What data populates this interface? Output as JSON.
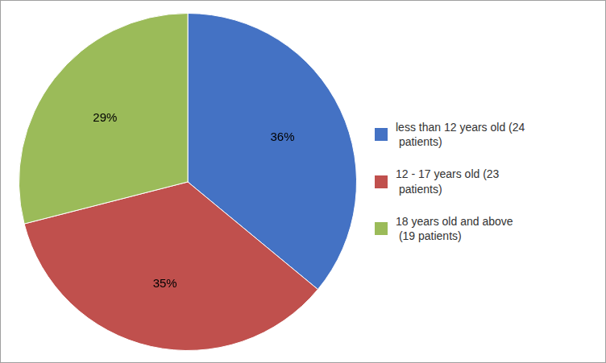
{
  "chart_data": {
    "type": "pie",
    "categories": [
      "less than 12 years old (24\n patients)",
      "12 - 17 years old (23\n patients)",
      "18 years old and above\n (19 patients)"
    ],
    "values": [
      36,
      35,
      29
    ],
    "value_labels": [
      "36%",
      "35%",
      "29%"
    ],
    "colors": [
      "#4472C4",
      "#C0504D",
      "#9BBB59"
    ],
    "data_labels": true,
    "legend": "right"
  }
}
